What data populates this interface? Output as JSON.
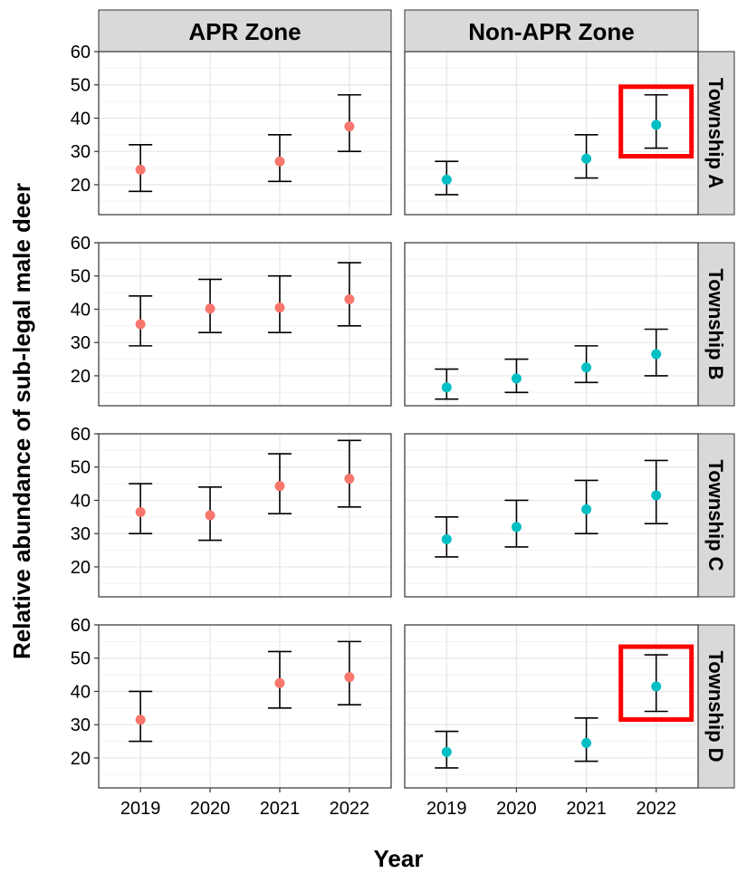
{
  "chart_data": {
    "type": "scatter",
    "title": "",
    "xlabel": "Year",
    "ylabel": "Relative abundance of sub-legal male deer",
    "categories": [
      "2019",
      "2020",
      "2021",
      "2022"
    ],
    "ylim": [
      11,
      60
    ],
    "yticks": [
      20,
      30,
      40,
      50,
      60
    ],
    "grid": true,
    "legend": "none",
    "columns": [
      "APR Zone",
      "Non-APR Zone"
    ],
    "rows": [
      "Township A",
      "Township B",
      "Township C",
      "Township D"
    ],
    "colors": {
      "APR Zone": "#F8766D",
      "Non-APR Zone": "#00BFC4",
      "highlight": "#FF0000"
    },
    "panels": [
      {
        "row": "Township A",
        "col": "APR Zone",
        "points": [
          {
            "x": "2019",
            "y": 24.5,
            "lo": 18,
            "hi": 32
          },
          {
            "x": "2021",
            "y": 27,
            "lo": 21,
            "hi": 35
          },
          {
            "x": "2022",
            "y": 37.5,
            "lo": 30,
            "hi": 47
          }
        ]
      },
      {
        "row": "Township A",
        "col": "Non-APR Zone",
        "highlight": "2022",
        "points": [
          {
            "x": "2019",
            "y": 21.5,
            "lo": 17,
            "hi": 27
          },
          {
            "x": "2021",
            "y": 27.8,
            "lo": 22,
            "hi": 35
          },
          {
            "x": "2022",
            "y": 38,
            "lo": 31,
            "hi": 47
          }
        ]
      },
      {
        "row": "Township B",
        "col": "APR Zone",
        "points": [
          {
            "x": "2019",
            "y": 35.5,
            "lo": 29,
            "hi": 44
          },
          {
            "x": "2020",
            "y": 40.2,
            "lo": 33,
            "hi": 49
          },
          {
            "x": "2021",
            "y": 40.5,
            "lo": 33,
            "hi": 50
          },
          {
            "x": "2022",
            "y": 43,
            "lo": 35,
            "hi": 54
          }
        ]
      },
      {
        "row": "Township B",
        "col": "Non-APR Zone",
        "points": [
          {
            "x": "2019",
            "y": 16.5,
            "lo": 13,
            "hi": 22
          },
          {
            "x": "2020",
            "y": 19.2,
            "lo": 15,
            "hi": 25
          },
          {
            "x": "2021",
            "y": 22.5,
            "lo": 18,
            "hi": 29
          },
          {
            "x": "2022",
            "y": 26.5,
            "lo": 20,
            "hi": 34
          }
        ]
      },
      {
        "row": "Township C",
        "col": "APR Zone",
        "points": [
          {
            "x": "2019",
            "y": 36.5,
            "lo": 30,
            "hi": 45
          },
          {
            "x": "2020",
            "y": 35.5,
            "lo": 28,
            "hi": 44
          },
          {
            "x": "2021",
            "y": 44.3,
            "lo": 36,
            "hi": 54
          },
          {
            "x": "2022",
            "y": 46.5,
            "lo": 38,
            "hi": 58
          }
        ]
      },
      {
        "row": "Township C",
        "col": "Non-APR Zone",
        "points": [
          {
            "x": "2019",
            "y": 28.3,
            "lo": 23,
            "hi": 35
          },
          {
            "x": "2020",
            "y": 32,
            "lo": 26,
            "hi": 40
          },
          {
            "x": "2021",
            "y": 37.3,
            "lo": 30,
            "hi": 46
          },
          {
            "x": "2022",
            "y": 41.5,
            "lo": 33,
            "hi": 52
          }
        ]
      },
      {
        "row": "Township D",
        "col": "APR Zone",
        "points": [
          {
            "x": "2019",
            "y": 31.5,
            "lo": 25,
            "hi": 40
          },
          {
            "x": "2021",
            "y": 42.5,
            "lo": 35,
            "hi": 52
          },
          {
            "x": "2022",
            "y": 44.3,
            "lo": 36,
            "hi": 55
          }
        ]
      },
      {
        "row": "Township D",
        "col": "Non-APR Zone",
        "highlight": "2022",
        "points": [
          {
            "x": "2019",
            "y": 21.8,
            "lo": 17,
            "hi": 28
          },
          {
            "x": "2021",
            "y": 24.5,
            "lo": 19,
            "hi": 32
          },
          {
            "x": "2022",
            "y": 41.5,
            "lo": 34,
            "hi": 51
          }
        ]
      }
    ]
  }
}
